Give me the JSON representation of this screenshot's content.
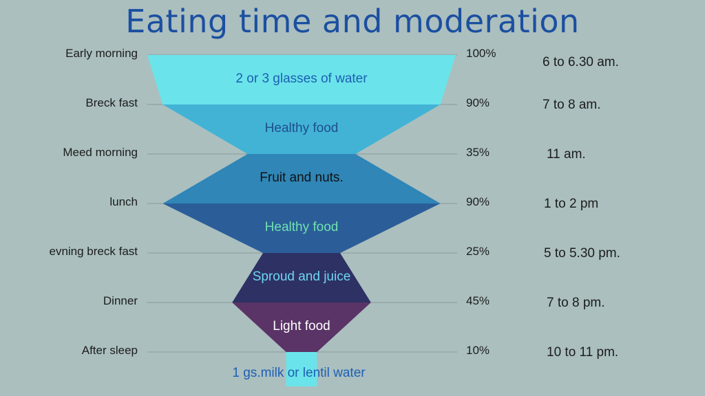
{
  "title": "Eating time and moderation",
  "chart_data": {
    "type": "funnel",
    "stages": [
      {
        "label": "Early morning",
        "percent_label": "100%",
        "value": 100,
        "time": "6 to 6.30 am.",
        "text": "2 or 3 glasses of water",
        "color": "#6ae4ea",
        "text_color": "#1d5fb4"
      },
      {
        "label": "Breck fast",
        "percent_label": "90%",
        "value": 90,
        "time": "7 to 8 am.",
        "text": "Healthy food",
        "color": "#42b3d5",
        "text_color": "#1e4f8c"
      },
      {
        "label": "Meed morning",
        "percent_label": "35%",
        "value": 35,
        "time": "11 am.",
        "text": "Fruit and nuts.",
        "color": "#2f86b7",
        "text_color": "#111111"
      },
      {
        "label": "lunch",
        "percent_label": "90%",
        "value": 90,
        "time": "1 to 2 pm",
        "text": "Healthy food",
        "color": "#2b5e98",
        "text_color": "#6fe0b0"
      },
      {
        "label": "evning breck fast",
        "percent_label": "25%",
        "value": 25,
        "time": "5 to 5.30 pm.",
        "text": "Sproud and juice",
        "color": "#2e3164",
        "text_color": "#6fd6f2"
      },
      {
        "label": "Dinner",
        "percent_label": "45%",
        "value": 45,
        "time": "7 to 8 pm.",
        "text": "Light food",
        "color": "#5a3466",
        "text_color": "#ffffff"
      },
      {
        "label": "After sleep",
        "percent_label": "10%",
        "value": 10,
        "time": "10 to 11 pm.",
        "text": "1 gs.milk or lentil water",
        "color": "#6ae4ea",
        "text_color": "#1d5fb4"
      }
    ]
  }
}
